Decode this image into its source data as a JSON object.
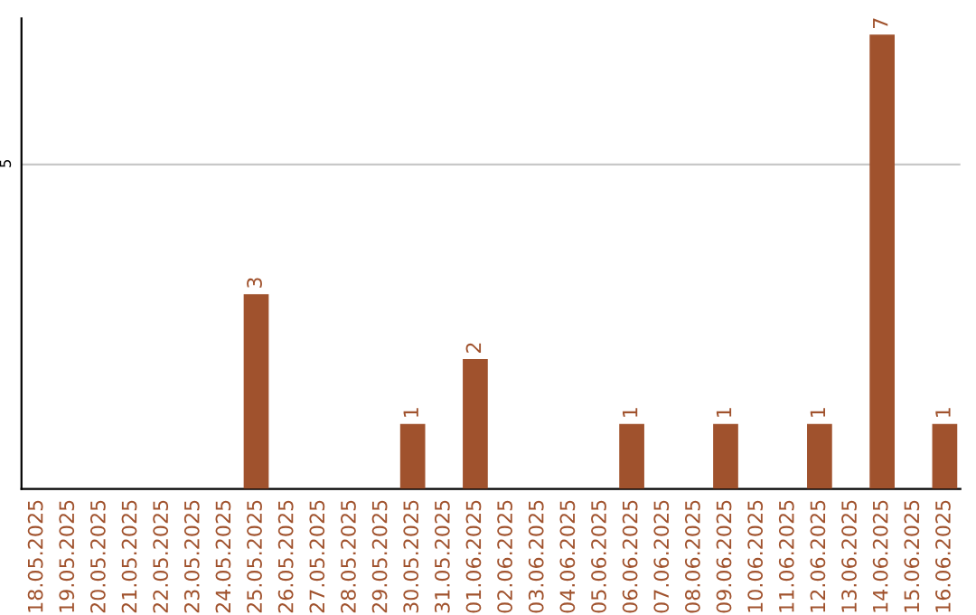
{
  "chart_data": {
    "type": "bar",
    "categories": [
      "18.05.2025",
      "19.05.2025",
      "20.05.2025",
      "21.05.2025",
      "22.05.2025",
      "23.05.2025",
      "24.05.2025",
      "25.05.2025",
      "26.05.2025",
      "27.05.2025",
      "28.05.2025",
      "29.05.2025",
      "30.05.2025",
      "31.05.2025",
      "01.06.2025",
      "02.06.2025",
      "03.06.2025",
      "04.06.2025",
      "05.06.2025",
      "06.06.2025",
      "07.06.2025",
      "08.06.2025",
      "09.06.2025",
      "10.06.2025",
      "11.06.2025",
      "12.06.2025",
      "13.06.2025",
      "14.06.2025",
      "15.06.2025",
      "16.06.2025"
    ],
    "values": [
      0,
      0,
      0,
      0,
      0,
      0,
      0,
      3,
      0,
      0,
      0,
      0,
      1,
      0,
      2,
      0,
      0,
      0,
      0,
      1,
      0,
      0,
      1,
      0,
      0,
      1,
      0,
      7,
      0,
      1
    ],
    "value_labels": [
      null,
      null,
      null,
      null,
      null,
      null,
      null,
      "3",
      null,
      null,
      null,
      null,
      "1",
      null,
      "2",
      null,
      null,
      null,
      null,
      "1",
      null,
      null,
      "1",
      null,
      null,
      "1",
      null,
      "7",
      null,
      "1"
    ],
    "color": "#a0522d",
    "ylim": [
      0,
      7.25
    ],
    "yticks": [
      5
    ],
    "grid": "y"
  }
}
